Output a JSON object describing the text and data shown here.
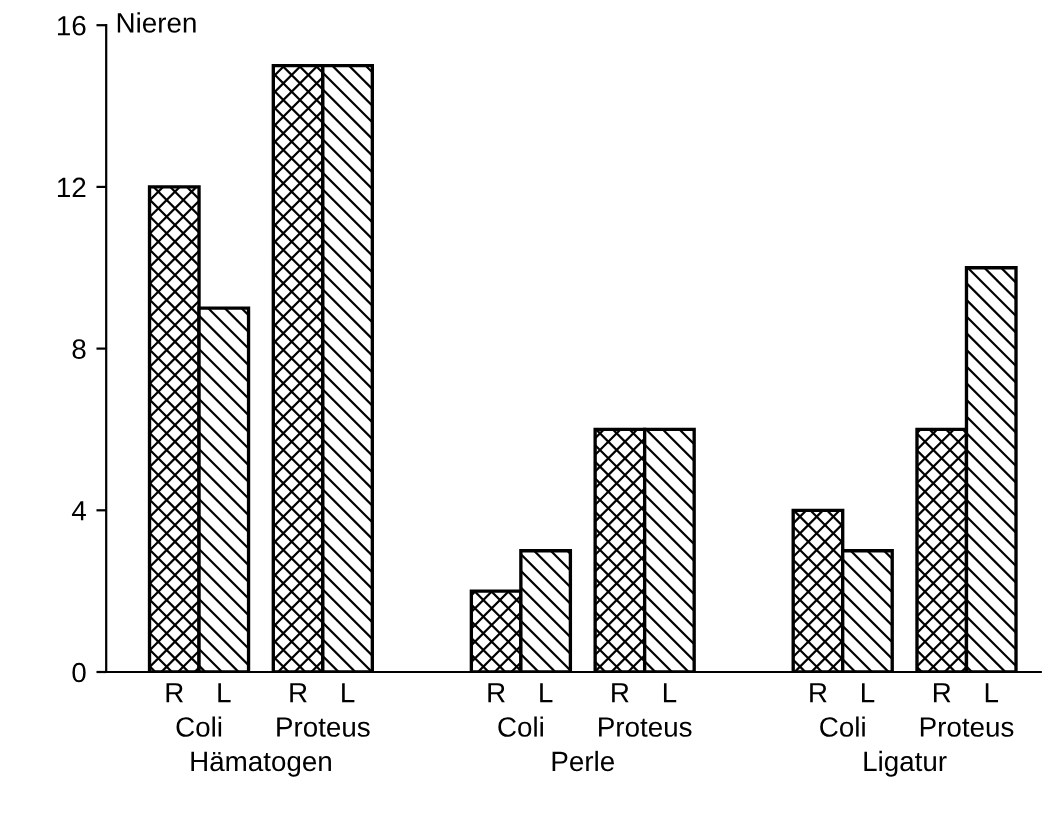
{
  "chart_data": {
    "type": "bar",
    "ylabel": "Nieren",
    "categories": [
      "Coli",
      "Proteus",
      "Coli",
      "Proteus",
      "Coli",
      "Proteus"
    ],
    "series": [
      {
        "name": "R",
        "color": "#000000",
        "values": [
          12,
          15,
          2,
          6,
          4,
          6
        ]
      },
      {
        "name": "L",
        "color": "#000000",
        "values": [
          9,
          15,
          3,
          6,
          3,
          10
        ]
      }
    ],
    "annotations": [
      "Hämatogen",
      "Perle",
      "Ligatur"
    ],
    "ylim": [
      0,
      16
    ],
    "yticks": [
      0,
      4,
      8,
      12,
      16
    ],
    "grid": false,
    "legend": false
  }
}
